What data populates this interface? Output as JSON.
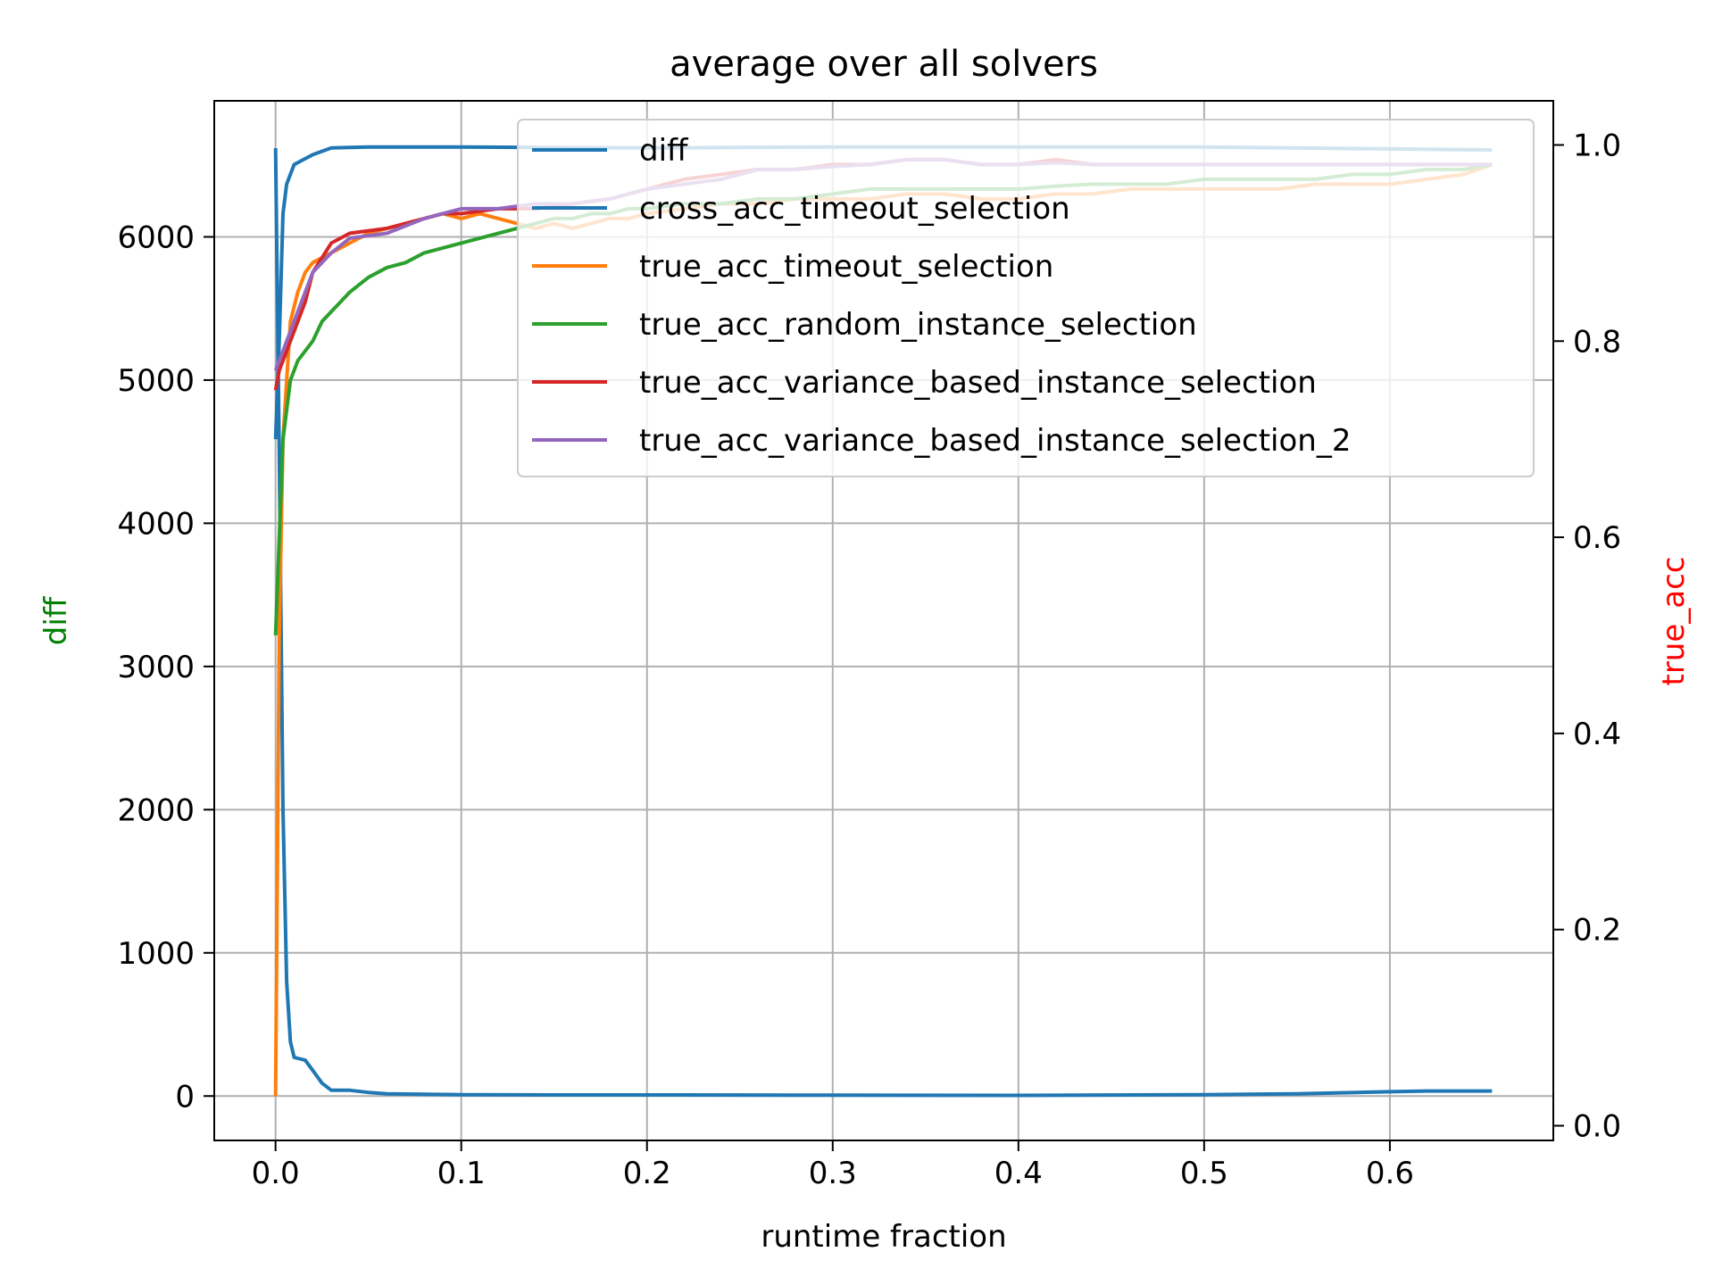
{
  "chart_data": {
    "type": "line",
    "title": "average over all solvers",
    "xlabel": "runtime fraction",
    "ylabel_left": "diff",
    "ylabel_right": "true_acc",
    "ylabel_left_color": "#008000",
    "ylabel_right_color": "#ff0000",
    "xlim": [
      -0.033,
      0.688
    ],
    "ylim_left": [
      -310,
      6950
    ],
    "ylim_right": [
      -0.015,
      1.045
    ],
    "xticks": [
      0.0,
      0.1,
      0.2,
      0.3,
      0.4,
      0.5,
      0.6
    ],
    "xtick_labels": [
      "0.0",
      "0.1",
      "0.2",
      "0.3",
      "0.4",
      "0.5",
      "0.6"
    ],
    "yticks_left": [
      0,
      1000,
      2000,
      3000,
      4000,
      5000,
      6000
    ],
    "ytick_labels_left": [
      "0",
      "1000",
      "2000",
      "3000",
      "4000",
      "5000",
      "6000"
    ],
    "yticks_right": [
      0.0,
      0.2,
      0.4,
      0.6,
      0.8,
      1.0
    ],
    "ytick_labels_right": [
      "0.0",
      "0.2",
      "0.4",
      "0.6",
      "0.8",
      "1.0"
    ],
    "grid": true,
    "legend_position": "top-right",
    "series": [
      {
        "name": "diff",
        "axis": "left",
        "color": "#1f77b4",
        "x": [
          0.0,
          0.002,
          0.004,
          0.006,
          0.008,
          0.01,
          0.013,
          0.016,
          0.02,
          0.025,
          0.03,
          0.04,
          0.05,
          0.06,
          0.08,
          0.1,
          0.15,
          0.2,
          0.3,
          0.4,
          0.5,
          0.55,
          0.6,
          0.62,
          0.655
        ],
        "y": [
          6620,
          4500,
          2000,
          800,
          380,
          270,
          260,
          250,
          180,
          90,
          40,
          40,
          25,
          15,
          12,
          10,
          8,
          8,
          6,
          5,
          10,
          15,
          30,
          35,
          35
        ]
      },
      {
        "name": "cross_acc_timeout_selection",
        "axis": "right",
        "color": "#1f77b4",
        "x": [
          0.0,
          0.002,
          0.004,
          0.006,
          0.01,
          0.015,
          0.02,
          0.03,
          0.05,
          0.1,
          0.2,
          0.3,
          0.4,
          0.5,
          0.6,
          0.655
        ],
        "y": [
          0.7,
          0.8,
          0.93,
          0.96,
          0.98,
          0.985,
          0.99,
          0.997,
          0.998,
          0.998,
          0.997,
          0.998,
          0.998,
          0.998,
          0.996,
          0.995
        ]
      },
      {
        "name": "true_acc_timeout_selection",
        "axis": "right",
        "color": "#ff7f0e",
        "x": [
          0.0,
          0.002,
          0.004,
          0.008,
          0.012,
          0.016,
          0.02,
          0.03,
          0.04,
          0.05,
          0.06,
          0.07,
          0.08,
          0.09,
          0.1,
          0.11,
          0.12,
          0.13,
          0.14,
          0.15,
          0.16,
          0.17,
          0.18,
          0.19,
          0.2,
          0.22,
          0.24,
          0.26,
          0.28,
          0.3,
          0.32,
          0.34,
          0.36,
          0.38,
          0.4,
          0.42,
          0.44,
          0.46,
          0.48,
          0.5,
          0.52,
          0.54,
          0.56,
          0.58,
          0.6,
          0.62,
          0.64,
          0.655
        ],
        "y": [
          0.03,
          0.5,
          0.7,
          0.82,
          0.85,
          0.87,
          0.88,
          0.89,
          0.9,
          0.91,
          0.915,
          0.92,
          0.925,
          0.93,
          0.925,
          0.93,
          0.925,
          0.92,
          0.915,
          0.92,
          0.915,
          0.92,
          0.925,
          0.925,
          0.93,
          0.935,
          0.94,
          0.94,
          0.945,
          0.945,
          0.945,
          0.95,
          0.95,
          0.945,
          0.945,
          0.95,
          0.95,
          0.955,
          0.955,
          0.955,
          0.955,
          0.955,
          0.96,
          0.96,
          0.96,
          0.965,
          0.97,
          0.98
        ]
      },
      {
        "name": "true_acc_random_instance_selection",
        "axis": "right",
        "color": "#2ca02c",
        "x": [
          0.0,
          0.002,
          0.004,
          0.008,
          0.012,
          0.016,
          0.02,
          0.025,
          0.03,
          0.04,
          0.05,
          0.06,
          0.07,
          0.08,
          0.09,
          0.1,
          0.11,
          0.12,
          0.13,
          0.14,
          0.15,
          0.16,
          0.17,
          0.18,
          0.19,
          0.2,
          0.22,
          0.24,
          0.26,
          0.28,
          0.3,
          0.32,
          0.34,
          0.36,
          0.38,
          0.4,
          0.42,
          0.44,
          0.46,
          0.48,
          0.5,
          0.52,
          0.54,
          0.56,
          0.58,
          0.6,
          0.62,
          0.64,
          0.655
        ],
        "y": [
          0.5,
          0.6,
          0.7,
          0.76,
          0.78,
          0.79,
          0.8,
          0.82,
          0.83,
          0.85,
          0.865,
          0.875,
          0.88,
          0.89,
          0.895,
          0.9,
          0.905,
          0.91,
          0.915,
          0.92,
          0.925,
          0.925,
          0.93,
          0.93,
          0.935,
          0.935,
          0.94,
          0.94,
          0.945,
          0.945,
          0.95,
          0.955,
          0.955,
          0.955,
          0.955,
          0.955,
          0.958,
          0.96,
          0.96,
          0.96,
          0.965,
          0.965,
          0.965,
          0.965,
          0.97,
          0.97,
          0.975,
          0.975,
          0.98
        ]
      },
      {
        "name": "true_acc_variance_based_instance_selection",
        "axis": "right",
        "color": "#d62728",
        "x": [
          0.0,
          0.002,
          0.004,
          0.008,
          0.012,
          0.016,
          0.02,
          0.03,
          0.04,
          0.06,
          0.08,
          0.09,
          0.1,
          0.12,
          0.14,
          0.16,
          0.18,
          0.2,
          0.22,
          0.24,
          0.26,
          0.28,
          0.3,
          0.32,
          0.34,
          0.36,
          0.38,
          0.4,
          0.42,
          0.44,
          0.5,
          0.55,
          0.6,
          0.655
        ],
        "y": [
          0.75,
          0.77,
          0.78,
          0.8,
          0.82,
          0.84,
          0.87,
          0.9,
          0.91,
          0.915,
          0.925,
          0.93,
          0.93,
          0.935,
          0.935,
          0.94,
          0.945,
          0.955,
          0.965,
          0.97,
          0.975,
          0.975,
          0.98,
          0.98,
          0.985,
          0.985,
          0.98,
          0.98,
          0.985,
          0.98,
          0.98,
          0.98,
          0.98,
          0.98
        ]
      },
      {
        "name": "true_acc_variance_based_instance_selection_2",
        "axis": "right",
        "color": "#9467bd",
        "x": [
          0.0,
          0.002,
          0.004,
          0.008,
          0.012,
          0.016,
          0.02,
          0.03,
          0.04,
          0.06,
          0.08,
          0.09,
          0.1,
          0.12,
          0.14,
          0.16,
          0.18,
          0.2,
          0.22,
          0.24,
          0.26,
          0.28,
          0.3,
          0.32,
          0.34,
          0.36,
          0.38,
          0.4,
          0.42,
          0.44,
          0.5,
          0.55,
          0.6,
          0.655
        ],
        "y": [
          0.77,
          0.78,
          0.79,
          0.81,
          0.83,
          0.85,
          0.87,
          0.89,
          0.905,
          0.91,
          0.925,
          0.93,
          0.935,
          0.935,
          0.94,
          0.94,
          0.945,
          0.955,
          0.96,
          0.965,
          0.975,
          0.975,
          0.978,
          0.98,
          0.985,
          0.985,
          0.98,
          0.98,
          0.982,
          0.98,
          0.98,
          0.98,
          0.98,
          0.98
        ]
      }
    ]
  }
}
